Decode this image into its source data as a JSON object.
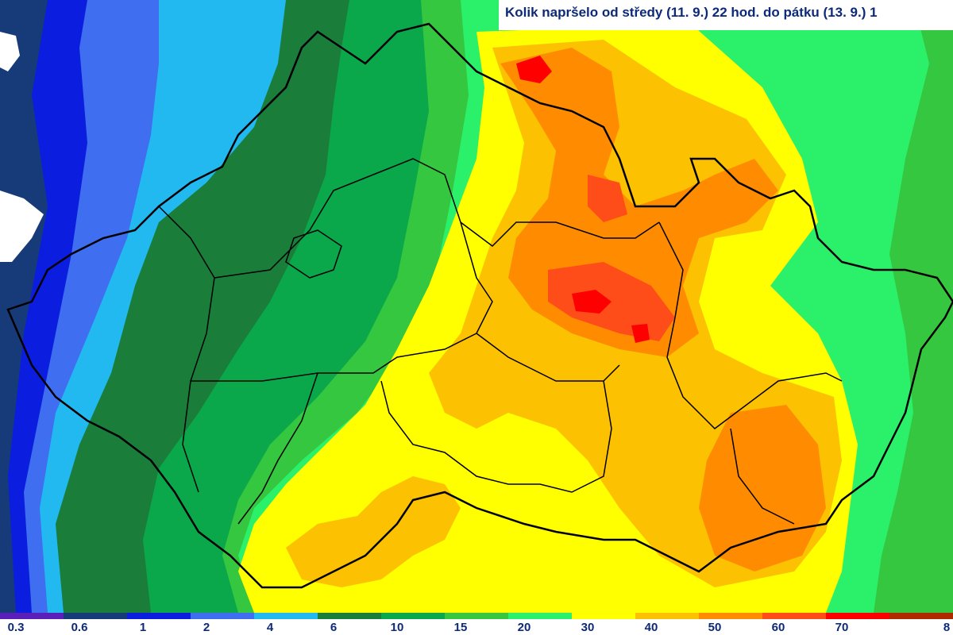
{
  "map": {
    "title": "Kolik napršelo od středy (11. 9.) 22 hod. do pátku (13. 9.) 1",
    "legend": {
      "colors": [
        "#5a1fb8",
        "#173a78",
        "#0b1ee0",
        "#3f6ef0",
        "#22b8f0",
        "#1a7d3a",
        "#0aa84a",
        "#35c73f",
        "#2af06a",
        "#ffff00",
        "#fcc100",
        "#ff8c00",
        "#ff4d1a",
        "#ff0000",
        "#b02a00"
      ],
      "labels": [
        "0.3",
        "0.6",
        "1",
        "2",
        "4",
        "6",
        "10",
        "15",
        "20",
        "30",
        "40",
        "50",
        "60",
        "70",
        "8"
      ]
    },
    "layers": {
      "precip-0.3": "#5a1fb8",
      "precip-0.6": "#173a78",
      "precip-1": "#0b1ee0",
      "precip-2": "#3f6ef0",
      "precip-4": "#22b8f0",
      "precip-6": "#1a7d3a",
      "precip-10": "#0aa84a",
      "precip-15": "#35c73f",
      "precip-20": "#2af06a",
      "precip-30": "#ffff00",
      "precip-40": "#fcc100",
      "precip-50": "#ff8c00",
      "precip-60": "#ff4d1a",
      "precip-70": "#ff0000",
      "border": "#000000"
    }
  }
}
